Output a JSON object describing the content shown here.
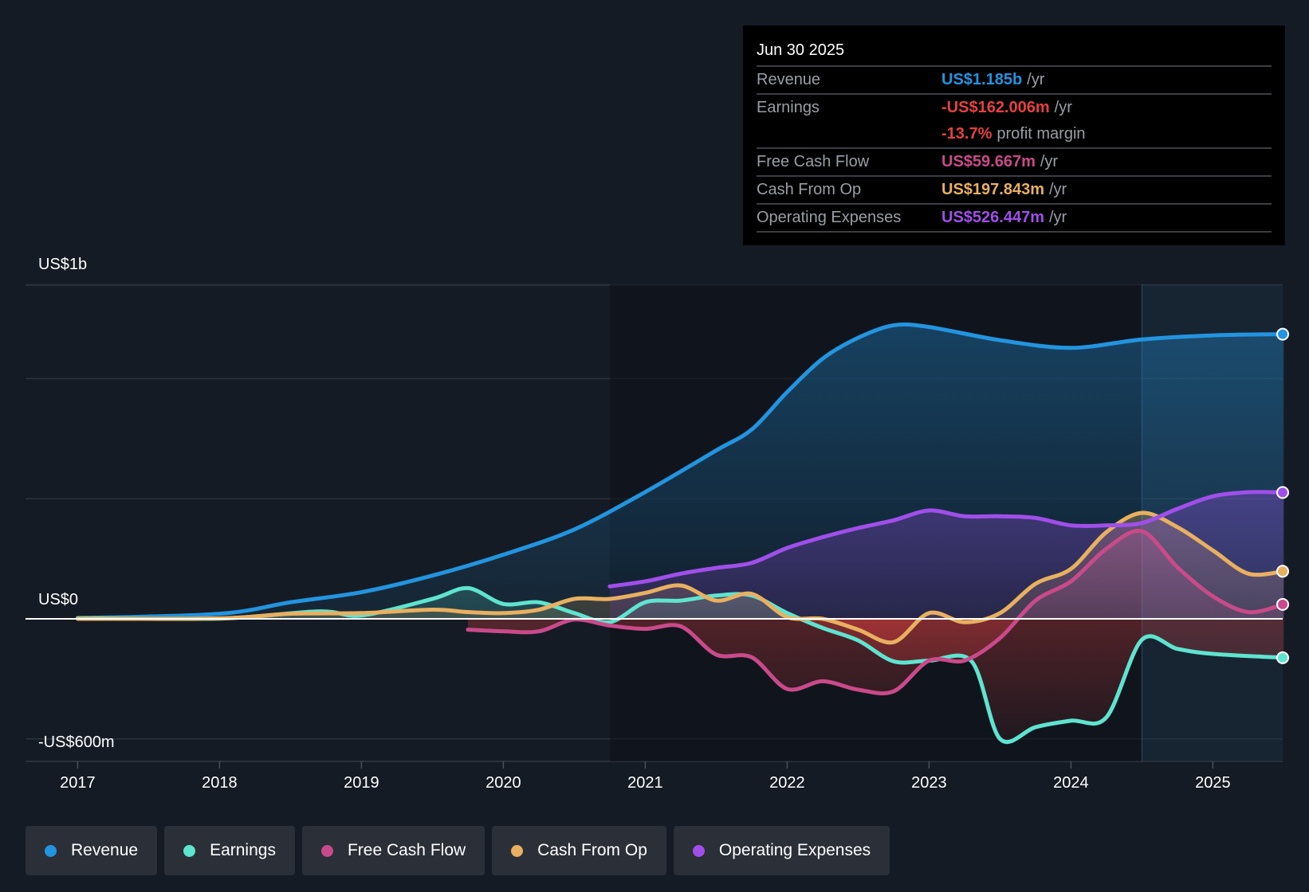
{
  "tooltip": {
    "date": "Jun 30 2025",
    "rows": [
      {
        "label": "Revenue",
        "value": "US$1.185b",
        "unit": "/yr",
        "color": "#2394df"
      },
      {
        "label": "Earnings",
        "value": "-US$162.006m",
        "unit": "/yr",
        "color": "#e64141"
      },
      {
        "label": "",
        "value": "-13.7%",
        "unit": "profit margin",
        "color": "#e64141"
      },
      {
        "label": "Free Cash Flow",
        "value": "US$59.667m",
        "unit": "/yr",
        "color": "#c94a8a"
      },
      {
        "label": "Cash From Op",
        "value": "US$197.843m",
        "unit": "/yr",
        "color": "#e8b060"
      },
      {
        "label": "Operating Expenses",
        "value": "US$526.447m",
        "unit": "/yr",
        "color": "#a04fea"
      }
    ]
  },
  "chart_data": {
    "type": "line",
    "title": "",
    "y_ticks": [
      {
        "label": "US$1b",
        "value": 1000
      },
      {
        "label": "US$0",
        "value": 0
      },
      {
        "label": "-US$600m",
        "value": -600
      }
    ],
    "x_ticks": [
      "2017",
      "2018",
      "2019",
      "2020",
      "2021",
      "2022",
      "2023",
      "2024",
      "2025"
    ],
    "ylim": [
      -600,
      1390
    ],
    "xlim": [
      2016.65,
      2025.5
    ],
    "grid": true,
    "legend_position": "bottom-left",
    "highlight_from": 2024.5,
    "series": [
      {
        "name": "Revenue",
        "color": "#2394df",
        "fill": true,
        "x": [
          2017,
          2018,
          2018.5,
          2019,
          2019.5,
          2020,
          2020.5,
          2021,
          2021.5,
          2021.75,
          2022,
          2022.25,
          2022.5,
          2022.75,
          2023,
          2023.5,
          2024,
          2024.5,
          2025,
          2025.5
        ],
        "y": [
          3,
          21,
          69,
          111,
          180,
          267,
          372,
          528,
          701,
          788,
          944,
          1083,
          1170,
          1222,
          1215,
          1160,
          1128,
          1163,
          1180,
          1185
        ]
      },
      {
        "name": "Earnings",
        "color": "#5ee4cf",
        "fill": true,
        "x": [
          2017,
          2018,
          2018.7,
          2019,
          2019.5,
          2019.75,
          2020,
          2020.25,
          2020.5,
          2020.75,
          2021,
          2021.25,
          2021.5,
          2021.75,
          2022,
          2022.25,
          2022.5,
          2022.75,
          2023,
          2023.3,
          2023.5,
          2023.75,
          2024,
          2024.25,
          2024.5,
          2024.75,
          2025,
          2025.5
        ],
        "y": [
          3,
          1,
          31,
          14,
          83,
          128,
          62,
          69,
          24,
          -14,
          69,
          76,
          97,
          97,
          24,
          -38,
          -90,
          -177,
          -174,
          -177,
          -500,
          -451,
          -424,
          -410,
          -87,
          -125,
          -146,
          -162
        ]
      },
      {
        "name": "Free Cash Flow",
        "color": "#c94a8a",
        "fill": true,
        "x": [
          2019.75,
          2020,
          2020.25,
          2020.5,
          2020.75,
          2021,
          2021.25,
          2021.5,
          2021.75,
          2022,
          2022.25,
          2022.5,
          2022.75,
          2023,
          2023.25,
          2023.5,
          2023.75,
          2024,
          2024.25,
          2024.5,
          2024.75,
          2025,
          2025.25,
          2025.5
        ],
        "y": [
          -45,
          -52,
          -52,
          -3,
          -28,
          -42,
          -31,
          -149,
          -160,
          -292,
          -260,
          -295,
          -302,
          -174,
          -174,
          -80,
          76,
          156,
          292,
          365,
          215,
          94,
          28,
          60
        ]
      },
      {
        "name": "Cash From Op",
        "color": "#e8b060",
        "fill": true,
        "x": [
          2017,
          2018,
          2018.5,
          2019,
          2019.5,
          2019.75,
          2020,
          2020.25,
          2020.5,
          2020.75,
          2021,
          2021.25,
          2021.5,
          2021.75,
          2022,
          2022.25,
          2022.5,
          2022.75,
          2023,
          2023.25,
          2023.5,
          2023.75,
          2024,
          2024.25,
          2024.5,
          2024.75,
          2025,
          2025.25,
          2025.5
        ],
        "y": [
          0,
          2,
          21,
          24,
          38,
          28,
          24,
          38,
          83,
          83,
          108,
          139,
          76,
          104,
          7,
          0,
          -45,
          -97,
          24,
          -14,
          24,
          146,
          208,
          361,
          441,
          382,
          285,
          188,
          198
        ]
      },
      {
        "name": "Operating Expenses",
        "color": "#a04fea",
        "fill": true,
        "x": [
          2020.75,
          2021,
          2021.25,
          2021.5,
          2021.75,
          2022,
          2022.25,
          2022.5,
          2022.75,
          2023,
          2023.25,
          2023.5,
          2023.75,
          2024,
          2024.25,
          2024.5,
          2024.75,
          2025,
          2025.25,
          2025.5
        ],
        "y": [
          135,
          156,
          188,
          212,
          233,
          295,
          340,
          378,
          410,
          451,
          427,
          427,
          420,
          389,
          389,
          399,
          458,
          510,
          527,
          526
        ]
      }
    ]
  }
}
